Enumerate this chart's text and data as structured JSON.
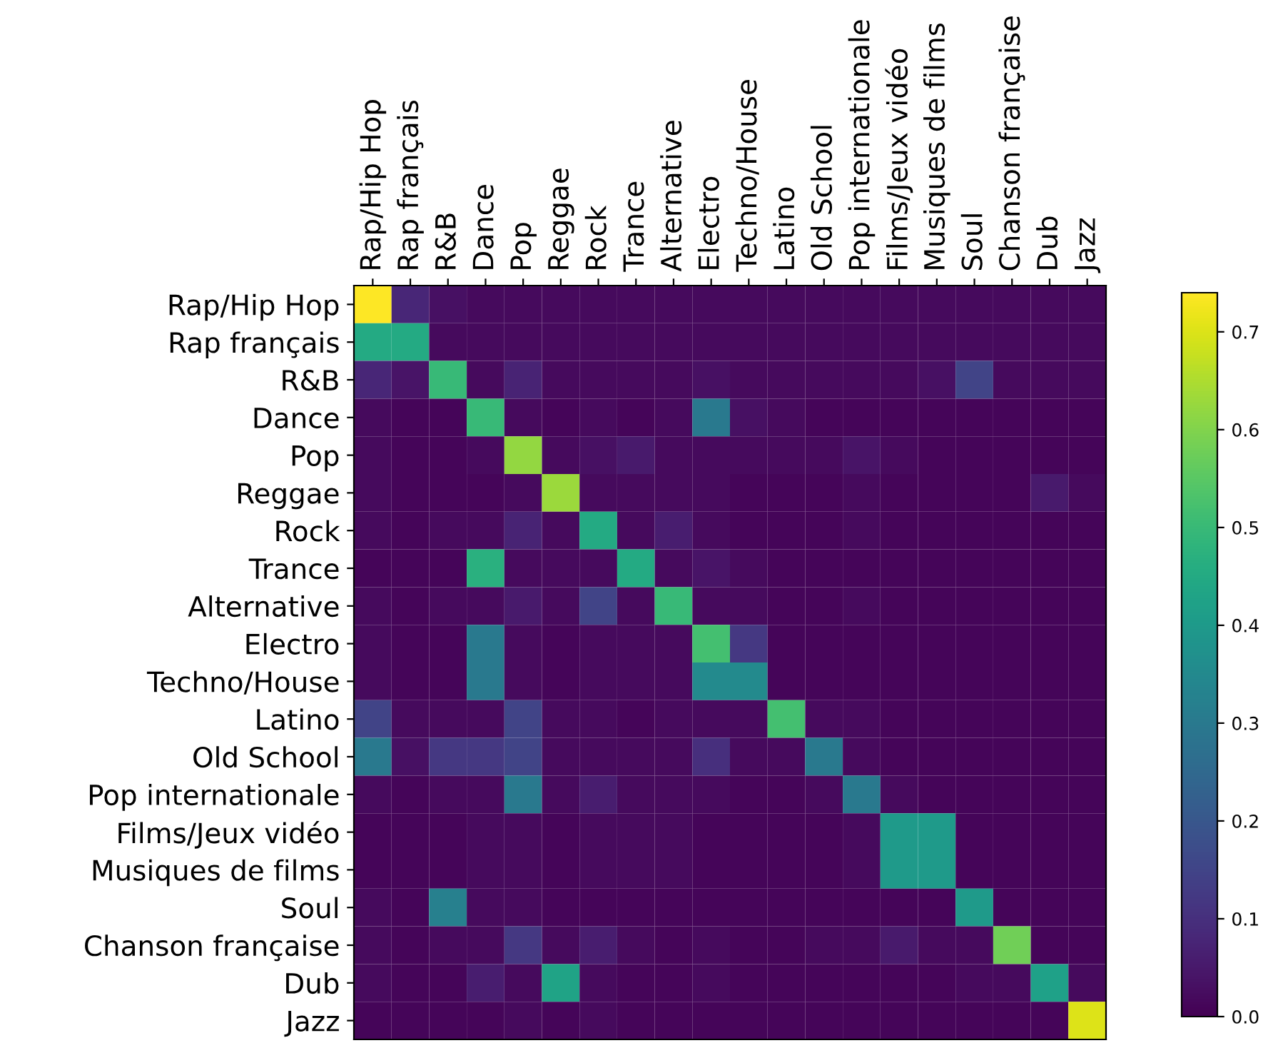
{
  "chart_data": {
    "type": "heatmap",
    "categories": [
      "Rap/Hip Hop",
      "Rap français",
      "R&B",
      "Dance",
      "Pop",
      "Reggae",
      "Rock",
      "Trance",
      "Alternative",
      "Electro",
      "Techno/House",
      "Latino",
      "Old School",
      "Pop internationale",
      "Films/Jeux vidéo",
      "Musiques de films",
      "Soul",
      "Chanson française",
      "Dub",
      "Jazz"
    ],
    "y_categories": [
      "Rap/Hip Hop",
      "Rap français",
      "R&B",
      "Dance",
      "Pop",
      "Reggae",
      "Rock",
      "Trance",
      "Alternative",
      "Electro",
      "Techno/House",
      "Latino",
      "Old School",
      "Pop internationale",
      "Films/Jeux vidéo",
      "Musiques de films",
      "Soul",
      "Chanson française",
      "Dub",
      "Jazz"
    ],
    "cells": [
      [
        0.74,
        0.08,
        0.03,
        0.02,
        0.02,
        0.02,
        0.02,
        0.02,
        0.02,
        0.02,
        0.02,
        0.02,
        0.02,
        0.02,
        0.02,
        0.02,
        0.02,
        0.02,
        0.02,
        0.02
      ],
      [
        0.45,
        0.45,
        0.02,
        0.02,
        0.02,
        0.02,
        0.02,
        0.02,
        0.02,
        0.02,
        0.02,
        0.02,
        0.02,
        0.02,
        0.02,
        0.02,
        0.02,
        0.02,
        0.02,
        0.02
      ],
      [
        0.08,
        0.04,
        0.5,
        0.02,
        0.07,
        0.02,
        0.02,
        0.02,
        0.02,
        0.03,
        0.02,
        0.02,
        0.02,
        0.02,
        0.02,
        0.03,
        0.15,
        0.02,
        0.02,
        0.02
      ],
      [
        0.02,
        0.01,
        0.01,
        0.5,
        0.02,
        0.01,
        0.02,
        0.01,
        0.02,
        0.3,
        0.03,
        0.02,
        0.01,
        0.01,
        0.01,
        0.01,
        0.01,
        0.01,
        0.01,
        0.01
      ],
      [
        0.02,
        0.01,
        0.01,
        0.02,
        0.62,
        0.02,
        0.03,
        0.05,
        0.02,
        0.02,
        0.02,
        0.02,
        0.02,
        0.04,
        0.02,
        0.01,
        0.01,
        0.01,
        0.01,
        0.01
      ],
      [
        0.02,
        0.01,
        0.01,
        0.01,
        0.02,
        0.63,
        0.02,
        0.02,
        0.02,
        0.02,
        0.01,
        0.01,
        0.01,
        0.02,
        0.01,
        0.01,
        0.01,
        0.01,
        0.05,
        0.02
      ],
      [
        0.02,
        0.01,
        0.02,
        0.02,
        0.07,
        0.02,
        0.45,
        0.02,
        0.06,
        0.02,
        0.01,
        0.01,
        0.01,
        0.02,
        0.01,
        0.01,
        0.01,
        0.01,
        0.01,
        0.01
      ],
      [
        0.01,
        0.01,
        0.01,
        0.47,
        0.02,
        0.02,
        0.02,
        0.45,
        0.02,
        0.04,
        0.02,
        0.01,
        0.01,
        0.01,
        0.01,
        0.01,
        0.01,
        0.01,
        0.01,
        0.01
      ],
      [
        0.02,
        0.01,
        0.02,
        0.02,
        0.05,
        0.02,
        0.15,
        0.02,
        0.5,
        0.02,
        0.02,
        0.01,
        0.01,
        0.02,
        0.01,
        0.01,
        0.01,
        0.01,
        0.01,
        0.01
      ],
      [
        0.02,
        0.01,
        0.01,
        0.3,
        0.02,
        0.01,
        0.02,
        0.02,
        0.02,
        0.52,
        0.12,
        0.01,
        0.01,
        0.01,
        0.01,
        0.01,
        0.01,
        0.01,
        0.01,
        0.01
      ],
      [
        0.02,
        0.01,
        0.01,
        0.3,
        0.02,
        0.01,
        0.02,
        0.02,
        0.02,
        0.35,
        0.35,
        0.01,
        0.01,
        0.01,
        0.01,
        0.01,
        0.01,
        0.01,
        0.01,
        0.01
      ],
      [
        0.15,
        0.02,
        0.02,
        0.02,
        0.15,
        0.02,
        0.02,
        0.01,
        0.02,
        0.02,
        0.02,
        0.52,
        0.02,
        0.02,
        0.01,
        0.01,
        0.01,
        0.01,
        0.01,
        0.01
      ],
      [
        0.3,
        0.03,
        0.12,
        0.12,
        0.15,
        0.02,
        0.02,
        0.02,
        0.02,
        0.1,
        0.02,
        0.02,
        0.3,
        0.02,
        0.01,
        0.01,
        0.01,
        0.01,
        0.01,
        0.01
      ],
      [
        0.02,
        0.01,
        0.02,
        0.02,
        0.3,
        0.02,
        0.06,
        0.02,
        0.02,
        0.02,
        0.01,
        0.01,
        0.02,
        0.3,
        0.02,
        0.01,
        0.01,
        0.01,
        0.01,
        0.01
      ],
      [
        0.01,
        0.01,
        0.01,
        0.02,
        0.02,
        0.01,
        0.02,
        0.02,
        0.02,
        0.01,
        0.01,
        0.01,
        0.01,
        0.02,
        0.4,
        0.4,
        0.01,
        0.01,
        0.01,
        0.01
      ],
      [
        0.01,
        0.01,
        0.01,
        0.02,
        0.02,
        0.01,
        0.02,
        0.02,
        0.02,
        0.01,
        0.01,
        0.01,
        0.01,
        0.02,
        0.4,
        0.4,
        0.01,
        0.01,
        0.01,
        0.01
      ],
      [
        0.02,
        0.01,
        0.32,
        0.02,
        0.02,
        0.01,
        0.01,
        0.01,
        0.01,
        0.01,
        0.01,
        0.01,
        0.01,
        0.01,
        0.01,
        0.01,
        0.4,
        0.01,
        0.01,
        0.01
      ],
      [
        0.02,
        0.01,
        0.02,
        0.02,
        0.12,
        0.02,
        0.06,
        0.02,
        0.01,
        0.02,
        0.01,
        0.01,
        0.02,
        0.02,
        0.05,
        0.02,
        0.02,
        0.58,
        0.01,
        0.01
      ],
      [
        0.02,
        0.01,
        0.01,
        0.06,
        0.02,
        0.43,
        0.02,
        0.01,
        0.01,
        0.02,
        0.01,
        0.01,
        0.01,
        0.01,
        0.01,
        0.01,
        0.02,
        0.02,
        0.42,
        0.02
      ],
      [
        0.01,
        0.01,
        0.01,
        0.01,
        0.02,
        0.01,
        0.02,
        0.01,
        0.01,
        0.01,
        0.01,
        0.01,
        0.01,
        0.01,
        0.01,
        0.01,
        0.01,
        0.01,
        0.01,
        0.7
      ]
    ],
    "clim": [
      0,
      0.74
    ],
    "cticks": [
      {
        "value": 0,
        "label": "0.0"
      },
      0.1,
      0.2,
      0.3,
      0.4,
      0.5,
      0.6,
      0.7
    ],
    "grid": false
  }
}
